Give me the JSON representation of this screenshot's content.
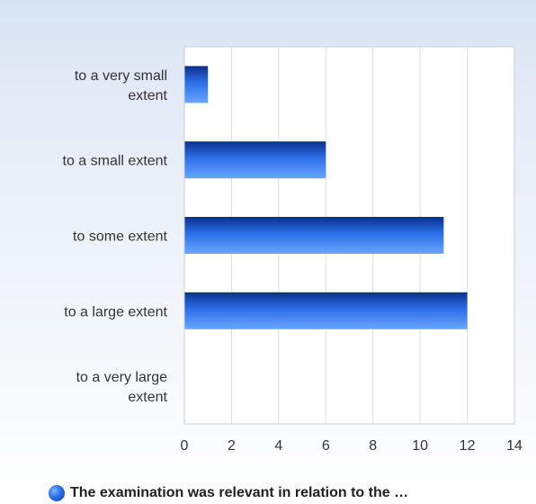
{
  "chart_data": {
    "type": "bar",
    "orientation": "horizontal",
    "categories": [
      [
        "to a very small",
        "extent"
      ],
      [
        "to a small extent"
      ],
      [
        "to some extent"
      ],
      [
        "to a large extent"
      ],
      [
        "to a very large",
        "extent"
      ]
    ],
    "series": [
      {
        "name": "The examination was relevant in relation to the …",
        "values": [
          1,
          6,
          11,
          12,
          0
        ]
      }
    ],
    "xlim": [
      0,
      14
    ],
    "xticks": [
      "0",
      "2",
      "4",
      "6",
      "8",
      "10",
      "12",
      "14"
    ],
    "grid": true,
    "legend_position": "bottom",
    "colors": {
      "bar_top": "#0b2f8a",
      "bar_mid": "#2c6fe8",
      "bar_bottom": "#6aa6ff",
      "grid": "#d7deea",
      "axis": "#c8d0de",
      "plot_bg": "#ffffff"
    }
  },
  "legend": {
    "label": "The examination was relevant in relation to the …"
  }
}
